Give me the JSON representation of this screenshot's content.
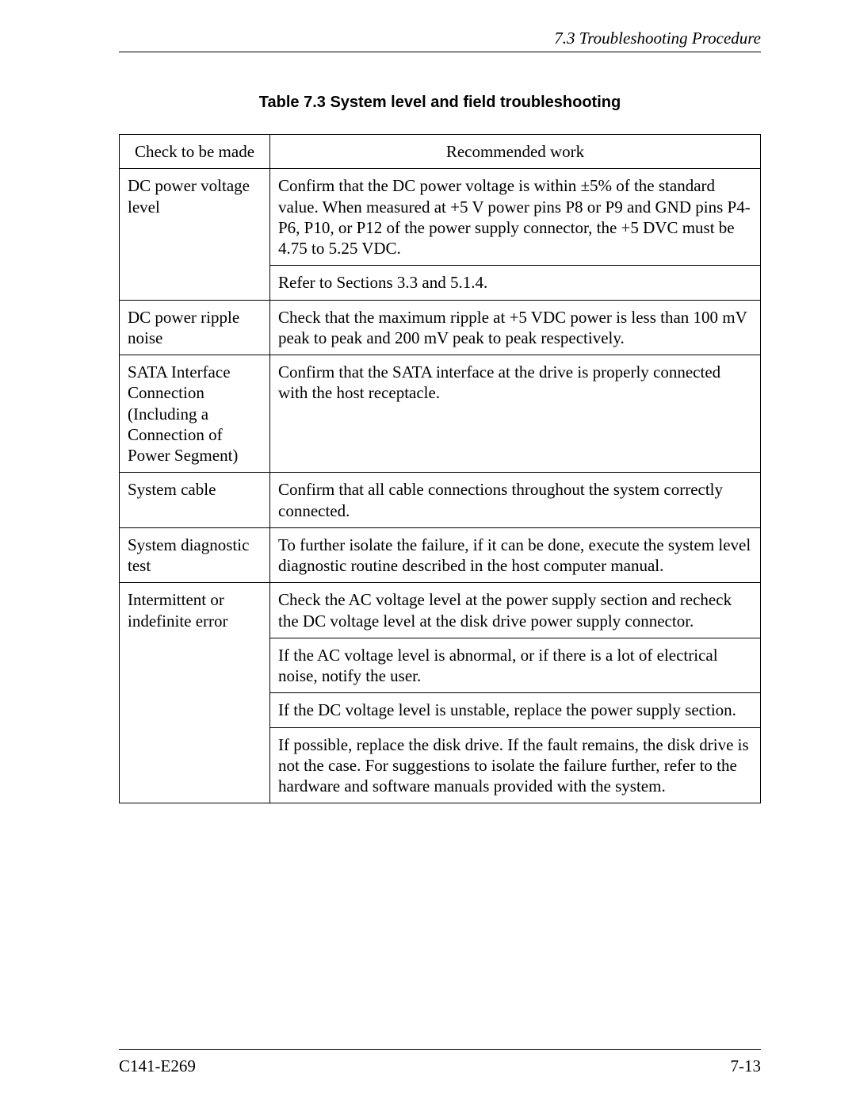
{
  "header": {
    "section_label": "7.3  Troubleshooting Procedure"
  },
  "table": {
    "caption": "Table 7.3  System level and field troubleshooting",
    "columns": {
      "check": "Check to be made",
      "work": "Recommended work"
    },
    "rows": [
      {
        "check": "DC power voltage level",
        "work": [
          "Confirm that the DC power voltage is within ±5% of the standard value.  When measured at +5 V power pins P8 or P9 and GND pins P4-P6, P10, or P12 of the power supply connector, the +5 DVC must be 4.75 to 5.25 VDC.",
          "Refer to Sections 3.3 and 5.1.4."
        ]
      },
      {
        "check": "DC power ripple noise",
        "work": [
          "Check that the maximum ripple at +5 VDC power is less than 100 mV peak to peak and 200 mV peak to peak respectively."
        ]
      },
      {
        "check": "SATA Interface Connection (Including a Connection of Power Segment)",
        "work": [
          "Confirm that the SATA interface at the drive is properly connected with the host receptacle."
        ]
      },
      {
        "check": "System cable",
        "work": [
          "Confirm that all cable connections throughout the system correctly connected."
        ]
      },
      {
        "check": "System diagnostic test",
        "work": [
          "To further isolate the failure, if it can be done, execute the system level diagnostic routine described in the host computer manual."
        ]
      },
      {
        "check": "Intermittent or indefinite error",
        "work": [
          "Check the AC voltage level at the power supply section and recheck the DC voltage level at the disk drive power supply connector.",
          "If the AC voltage level is abnormal, or if there is a lot of electrical noise, notify the user.",
          "If the DC voltage level is unstable, replace the power supply section.",
          "If possible, replace the disk drive.  If the fault remains, the disk drive is not the case.  For suggestions to isolate the failure further, refer to the hardware and software manuals provided with the system."
        ]
      }
    ]
  },
  "footer": {
    "doc_id": "C141-E269",
    "page_number": "7-13"
  }
}
